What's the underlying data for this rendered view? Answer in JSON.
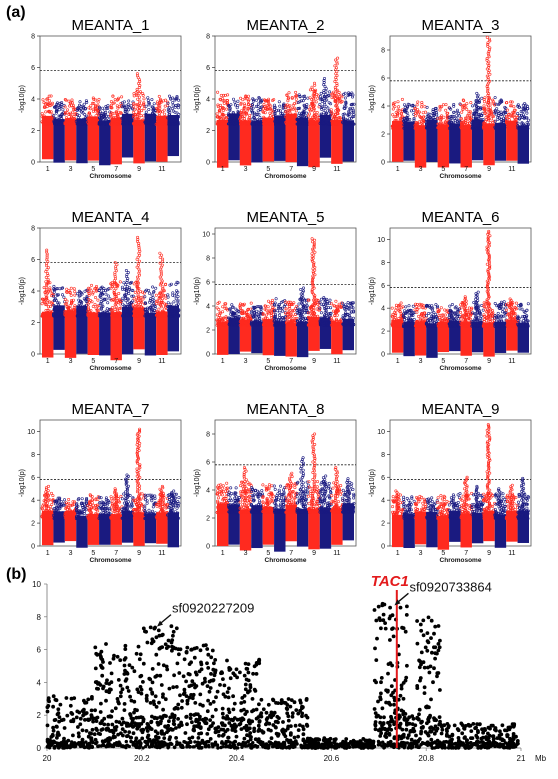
{
  "labels": {
    "a": "(a)",
    "b": "(b)"
  },
  "chart_data": [
    {
      "panel": "MEANTA_1",
      "type": "scatter",
      "title": "MEANTA_1",
      "xlabel": "Chromosome",
      "ylabel": "-log10(p)",
      "ylim": [
        0,
        8
      ],
      "yticks": [
        0,
        2,
        4,
        6,
        8
      ],
      "threshold": 5.8,
      "chrom_ticks": [
        "1",
        "3",
        "5",
        "7",
        "9",
        "11"
      ],
      "chrom_max": [
        4.2,
        3.8,
        4.0,
        3.9,
        4.1,
        3.7,
        4.3,
        4.0,
        5.6,
        4.1,
        4.3,
        4.2
      ],
      "colors": {
        "odd": "#ff2a1f",
        "even": "#1a1a80"
      }
    },
    {
      "panel": "MEANTA_2",
      "type": "scatter",
      "title": "MEANTA_2",
      "xlabel": "Chromosome",
      "ylabel": "-log10(p)",
      "ylim": [
        0,
        8
      ],
      "yticks": [
        0,
        2,
        4,
        6,
        8
      ],
      "threshold": 5.8,
      "chrom_ticks": [
        "1",
        "3",
        "5",
        "7",
        "9",
        "11"
      ],
      "chrom_max": [
        4.5,
        4.0,
        4.2,
        4.1,
        4.0,
        3.9,
        4.6,
        4.3,
        5.0,
        5.3,
        6.6,
        4.4
      ],
      "colors": {
        "odd": "#ff2a1f",
        "even": "#1a1a80"
      }
    },
    {
      "panel": "MEANTA_3",
      "type": "scatter",
      "title": "MEANTA_3",
      "xlabel": "Chromosome",
      "ylabel": "-log10(p)",
      "ylim": [
        0,
        9
      ],
      "yticks": [
        0,
        2,
        4,
        6,
        8
      ],
      "threshold": 5.8,
      "chrom_ticks": [
        "1",
        "3",
        "5",
        "7",
        "9",
        "11"
      ],
      "chrom_max": [
        4.5,
        4.2,
        4.3,
        4.0,
        4.1,
        4.2,
        4.5,
        4.9,
        8.9,
        4.6,
        4.3,
        4.2
      ],
      "colors": {
        "odd": "#ff2a1f",
        "even": "#1a1a80"
      }
    },
    {
      "panel": "MEANTA_4",
      "type": "scatter",
      "title": "MEANTA_4",
      "xlabel": "Chromosome",
      "ylabel": "-log10(p)",
      "ylim": [
        0,
        8
      ],
      "yticks": [
        0,
        2,
        4,
        6,
        8
      ],
      "threshold": 5.8,
      "chrom_ticks": [
        "1",
        "3",
        "5",
        "7",
        "9",
        "11"
      ],
      "chrom_max": [
        6.6,
        4.3,
        4.2,
        4.1,
        4.4,
        4.3,
        5.8,
        5.3,
        7.4,
        4.3,
        6.4,
        4.6
      ],
      "colors": {
        "odd": "#ff2a1f",
        "even": "#1a1a80"
      }
    },
    {
      "panel": "MEANTA_5",
      "type": "scatter",
      "title": "MEANTA_5",
      "xlabel": "Chromosome",
      "ylabel": "-log10(p)",
      "ylim": [
        0,
        10.5
      ],
      "yticks": [
        0,
        2,
        4,
        6,
        8,
        10
      ],
      "threshold": 5.8,
      "chrom_ticks": [
        "1",
        "3",
        "5",
        "7",
        "9",
        "11"
      ],
      "chrom_max": [
        4.4,
        4.1,
        4.3,
        4.0,
        4.5,
        4.6,
        4.4,
        5.5,
        9.6,
        4.7,
        4.5,
        4.3
      ],
      "colors": {
        "odd": "#ff2a1f",
        "even": "#1a1a80"
      }
    },
    {
      "panel": "MEANTA_6",
      "type": "scatter",
      "title": "MEANTA_6",
      "xlabel": "Chromosome",
      "ylabel": "-log10(p)",
      "ylim": [
        0,
        11
      ],
      "yticks": [
        0,
        2,
        4,
        6,
        8,
        10
      ],
      "threshold": 5.8,
      "chrom_ticks": [
        "1",
        "3",
        "5",
        "7",
        "9",
        "11"
      ],
      "chrom_max": [
        4.5,
        4.3,
        4.4,
        4.6,
        4.2,
        4.4,
        5.0,
        5.4,
        10.7,
        4.6,
        4.8,
        4.5
      ],
      "colors": {
        "odd": "#ff2a1f",
        "even": "#1a1a80"
      }
    },
    {
      "panel": "MEANTA_7",
      "type": "scatter",
      "title": "MEANTA_7",
      "xlabel": "Chromosome",
      "ylabel": "-log10(p)",
      "ylim": [
        0,
        11
      ],
      "yticks": [
        0,
        2,
        4,
        6,
        8,
        10
      ],
      "threshold": 5.8,
      "chrom_ticks": [
        "1",
        "3",
        "5",
        "7",
        "9",
        "11"
      ],
      "chrom_max": [
        5.2,
        4.3,
        4.1,
        4.3,
        4.6,
        4.4,
        5.0,
        6.2,
        10.2,
        4.5,
        5.2,
        4.8
      ],
      "colors": {
        "odd": "#ff2a1f",
        "even": "#1a1a80"
      }
    },
    {
      "panel": "MEANTA_8",
      "type": "scatter",
      "title": "MEANTA_8",
      "xlabel": "Chromosome",
      "ylabel": "-log10(p)",
      "ylim": [
        0,
        9
      ],
      "yticks": [
        0,
        2,
        4,
        6,
        8
      ],
      "threshold": 5.8,
      "chrom_ticks": [
        "1",
        "3",
        "5",
        "7",
        "9",
        "11"
      ],
      "chrom_max": [
        4.5,
        4.2,
        5.6,
        4.3,
        4.4,
        4.3,
        5.2,
        6.3,
        8.0,
        5.0,
        5.6,
        4.8
      ],
      "colors": {
        "odd": "#ff2a1f",
        "even": "#1a1a80"
      }
    },
    {
      "panel": "MEANTA_9",
      "type": "scatter",
      "title": "MEANTA_9",
      "xlabel": "Chromosome",
      "ylabel": "-log10(p)",
      "ylim": [
        0,
        11
      ],
      "yticks": [
        0,
        2,
        4,
        6,
        8,
        10
      ],
      "threshold": 5.8,
      "chrom_ticks": [
        "1",
        "3",
        "5",
        "7",
        "9",
        "11"
      ],
      "chrom_max": [
        4.8,
        4.3,
        4.4,
        4.2,
        4.5,
        4.6,
        6.0,
        5.2,
        10.6,
        5.0,
        5.3,
        5.9
      ],
      "colors": {
        "odd": "#ff2a1f",
        "even": "#1a1a80"
      }
    },
    {
      "panel": "b",
      "type": "scatter",
      "title": "",
      "xlabel": "Mb",
      "ylabel": "",
      "xlim": [
        20,
        21
      ],
      "ylim": [
        0,
        10
      ],
      "xticks": [
        20,
        20.2,
        20.4,
        20.6,
        20.8,
        21
      ],
      "yticks": [
        0,
        2,
        4,
        6,
        8,
        10
      ],
      "point_color": "#000000",
      "regions": [
        {
          "x_start": 20.0,
          "x_end": 20.1,
          "max_y": 3.2
        },
        {
          "x_start": 20.1,
          "x_end": 20.2,
          "max_y": 6.4
        },
        {
          "x_start": 20.2,
          "x_end": 20.28,
          "max_y": 7.5
        },
        {
          "x_start": 20.28,
          "x_end": 20.35,
          "max_y": 6.3
        },
        {
          "x_start": 20.35,
          "x_end": 20.45,
          "max_y": 5.4
        },
        {
          "x_start": 20.45,
          "x_end": 20.55,
          "max_y": 3.0
        },
        {
          "x_start": 20.55,
          "x_end": 20.69,
          "max_y": 0.6
        },
        {
          "x_start": 20.69,
          "x_end": 20.76,
          "max_y": 8.8
        },
        {
          "x_start": 20.76,
          "x_end": 20.78,
          "max_y": 2.0
        },
        {
          "x_start": 20.78,
          "x_end": 20.83,
          "max_y": 8.0
        },
        {
          "x_start": 20.83,
          "x_end": 21.0,
          "max_y": 1.5
        }
      ],
      "gene": {
        "name": "TAC1",
        "x": 20.738,
        "color": "#e31a1c"
      },
      "annotations": [
        {
          "text": "sf0920227209",
          "x": 20.232,
          "y": 7.4
        },
        {
          "text": "sf0920733864",
          "x": 20.733,
          "y": 8.7
        }
      ]
    }
  ]
}
